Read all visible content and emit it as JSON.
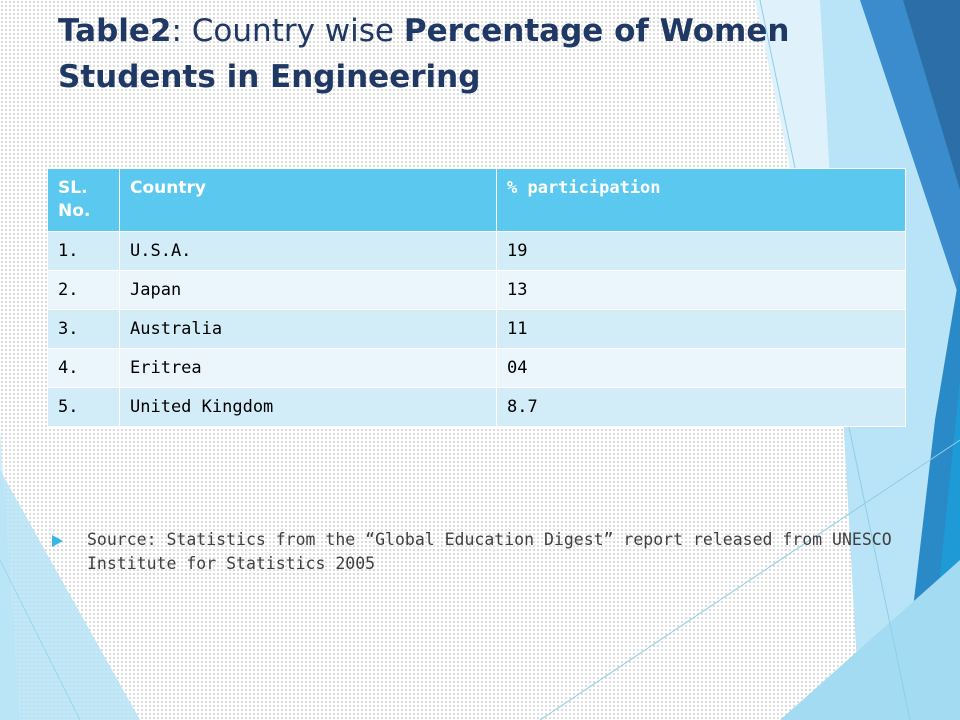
{
  "title": {
    "part1": "Table2",
    "part2": ": Country wise ",
    "part3": "Percentage of Women Students in Engineering"
  },
  "table": {
    "headers": [
      "SL. No.",
      "Country",
      "% participation"
    ],
    "rows": [
      [
        "1.",
        "U.S.A.",
        "19"
      ],
      [
        "2.",
        "Japan",
        "13"
      ],
      [
        "3.",
        "Australia",
        "11"
      ],
      [
        "4.",
        "Eritrea",
        "04"
      ],
      [
        "5.",
        "United Kingdom",
        "8.7"
      ]
    ]
  },
  "source": "Source: Statistics from the “Global Education Digest” report released from UNESCO Institute for Statistics 2005",
  "colors": {
    "title": "#1f3864",
    "header_bg": "#5bc8ef",
    "row_odd": "#d2ecf8",
    "row_even": "#eaf6fc",
    "accent": "#35b6e4"
  },
  "icons": {
    "bullet": "triangle-bullet-icon"
  }
}
